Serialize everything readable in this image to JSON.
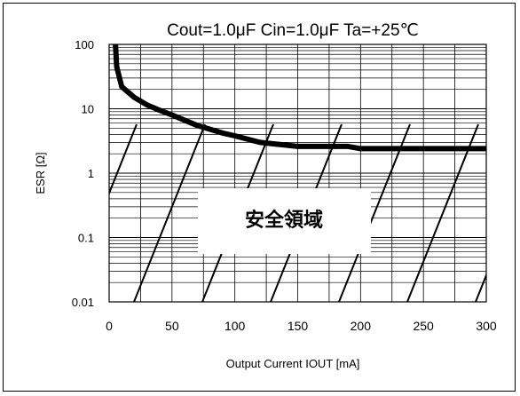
{
  "chart_data": {
    "type": "line",
    "title": "Cout=1.0μF Cin=1.0μF Ta=+25℃",
    "xlabel": "Output Current  IOUT  [mA]",
    "ylabel": "ESR [Ω]",
    "region_label": "安全領域",
    "x_ticks": [
      "0",
      "50",
      "100",
      "150",
      "200",
      "250",
      "300"
    ],
    "y_ticks": [
      "100",
      "10",
      "1",
      "0.1",
      "0.01"
    ],
    "xlim": [
      0,
      300
    ],
    "ylim": [
      0.01,
      100
    ],
    "y_scale": "log",
    "grid": true,
    "hatched_region": "below curve",
    "series": [
      {
        "x": [
          5,
          6,
          10,
          20,
          30,
          40,
          50,
          70,
          90,
          100,
          120,
          150,
          190,
          200,
          250,
          300
        ],
        "y": [
          100,
          45,
          22,
          15,
          11.5,
          9.5,
          8,
          5.5,
          4.2,
          3.8,
          3.0,
          2.6,
          2.6,
          2.4,
          2.4,
          2.4
        ]
      }
    ]
  }
}
